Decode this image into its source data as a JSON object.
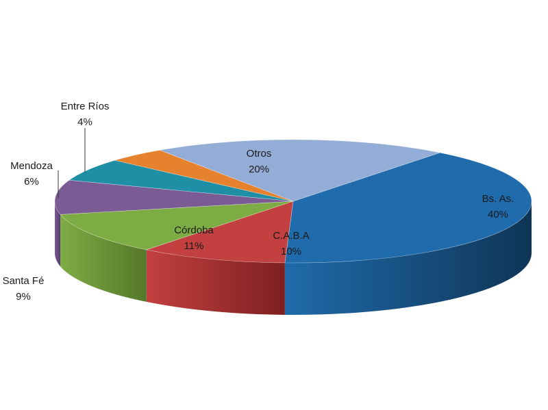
{
  "chart_data": {
    "type": "pie",
    "variant": "3d",
    "start_angle_deg": -52,
    "direction": "clockwise",
    "slices": [
      {
        "label": "Bs. As.",
        "value_label": "40%",
        "value": 40,
        "color": "#1f6bab",
        "side_color": "#0f3556"
      },
      {
        "label": "C.A.B.A",
        "value_label": "10%",
        "value": 10,
        "color": "#c2403f",
        "side_color": "#7e2020"
      },
      {
        "label": "Córdoba",
        "value_label": "11%",
        "value": 11,
        "color": "#7eac44",
        "side_color": "#55782a"
      },
      {
        "label": "Santa Fé",
        "value_label": "9%",
        "value": 9,
        "color": "#7a5b94",
        "side_color": "#553c6c"
      },
      {
        "label": "Mendoza",
        "value_label": "6%",
        "value": 6,
        "color": "#1f8fa6",
        "side_color": "#135c6d"
      },
      {
        "label": "Entre Ríos",
        "value_label": "4%",
        "value": 4,
        "color": "#e6812d",
        "side_color": "#a1561a"
      },
      {
        "label": "Otros",
        "value_label": "20%",
        "value": 20,
        "color": "#93add6",
        "side_color": "#6a85b0"
      }
    ]
  }
}
